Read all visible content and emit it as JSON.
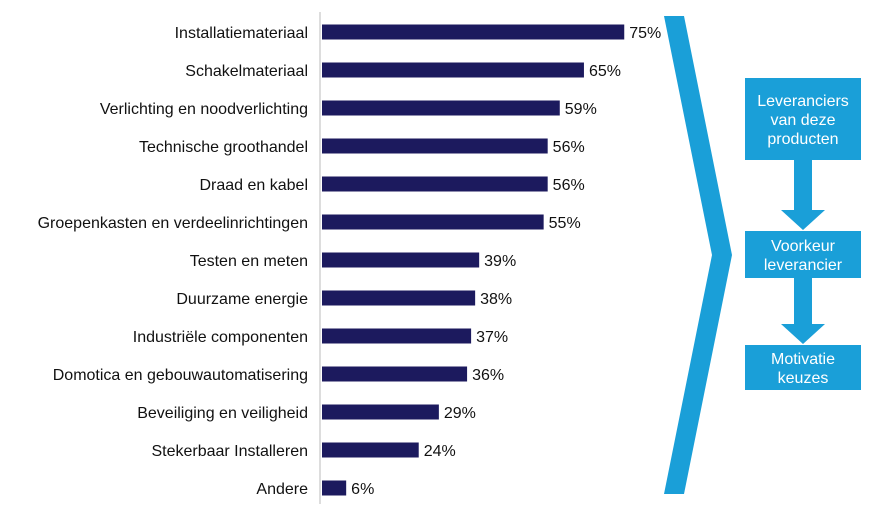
{
  "chart_data": {
    "type": "bar",
    "orientation": "horizontal",
    "categories": [
      "Installatiemateriaal",
      "Schakelmateriaal",
      "Verlichting en noodverlichting",
      "Technische groothandel",
      "Draad en kabel",
      "Groepenkasten en verdeelinrichtingen",
      "Testen en meten",
      "Duurzame energie",
      "Industriële componenten",
      "Domotica en gebouwautomatisering",
      "Beveiliging en veiligheid",
      "Stekerbaar Installeren",
      "Andere"
    ],
    "values": [
      75,
      65,
      59,
      56,
      56,
      55,
      39,
      38,
      37,
      36,
      29,
      24,
      6
    ],
    "value_labels": [
      "75%",
      "65%",
      "59%",
      "56%",
      "56%",
      "55%",
      "39%",
      "38%",
      "37%",
      "36%",
      "29%",
      "24%",
      "6%"
    ],
    "unit": "%",
    "xlim": [
      0,
      100
    ],
    "grid": false,
    "bar_color": "#1c1a5e"
  },
  "flow": {
    "color": "#1a9fd8",
    "boxes": [
      {
        "lines": [
          "Leveranciers",
          "van deze",
          "producten"
        ]
      },
      {
        "lines": [
          "Voorkeur",
          "leverancier"
        ]
      },
      {
        "lines": [
          "Motivatie",
          "keuzes"
        ]
      }
    ]
  }
}
